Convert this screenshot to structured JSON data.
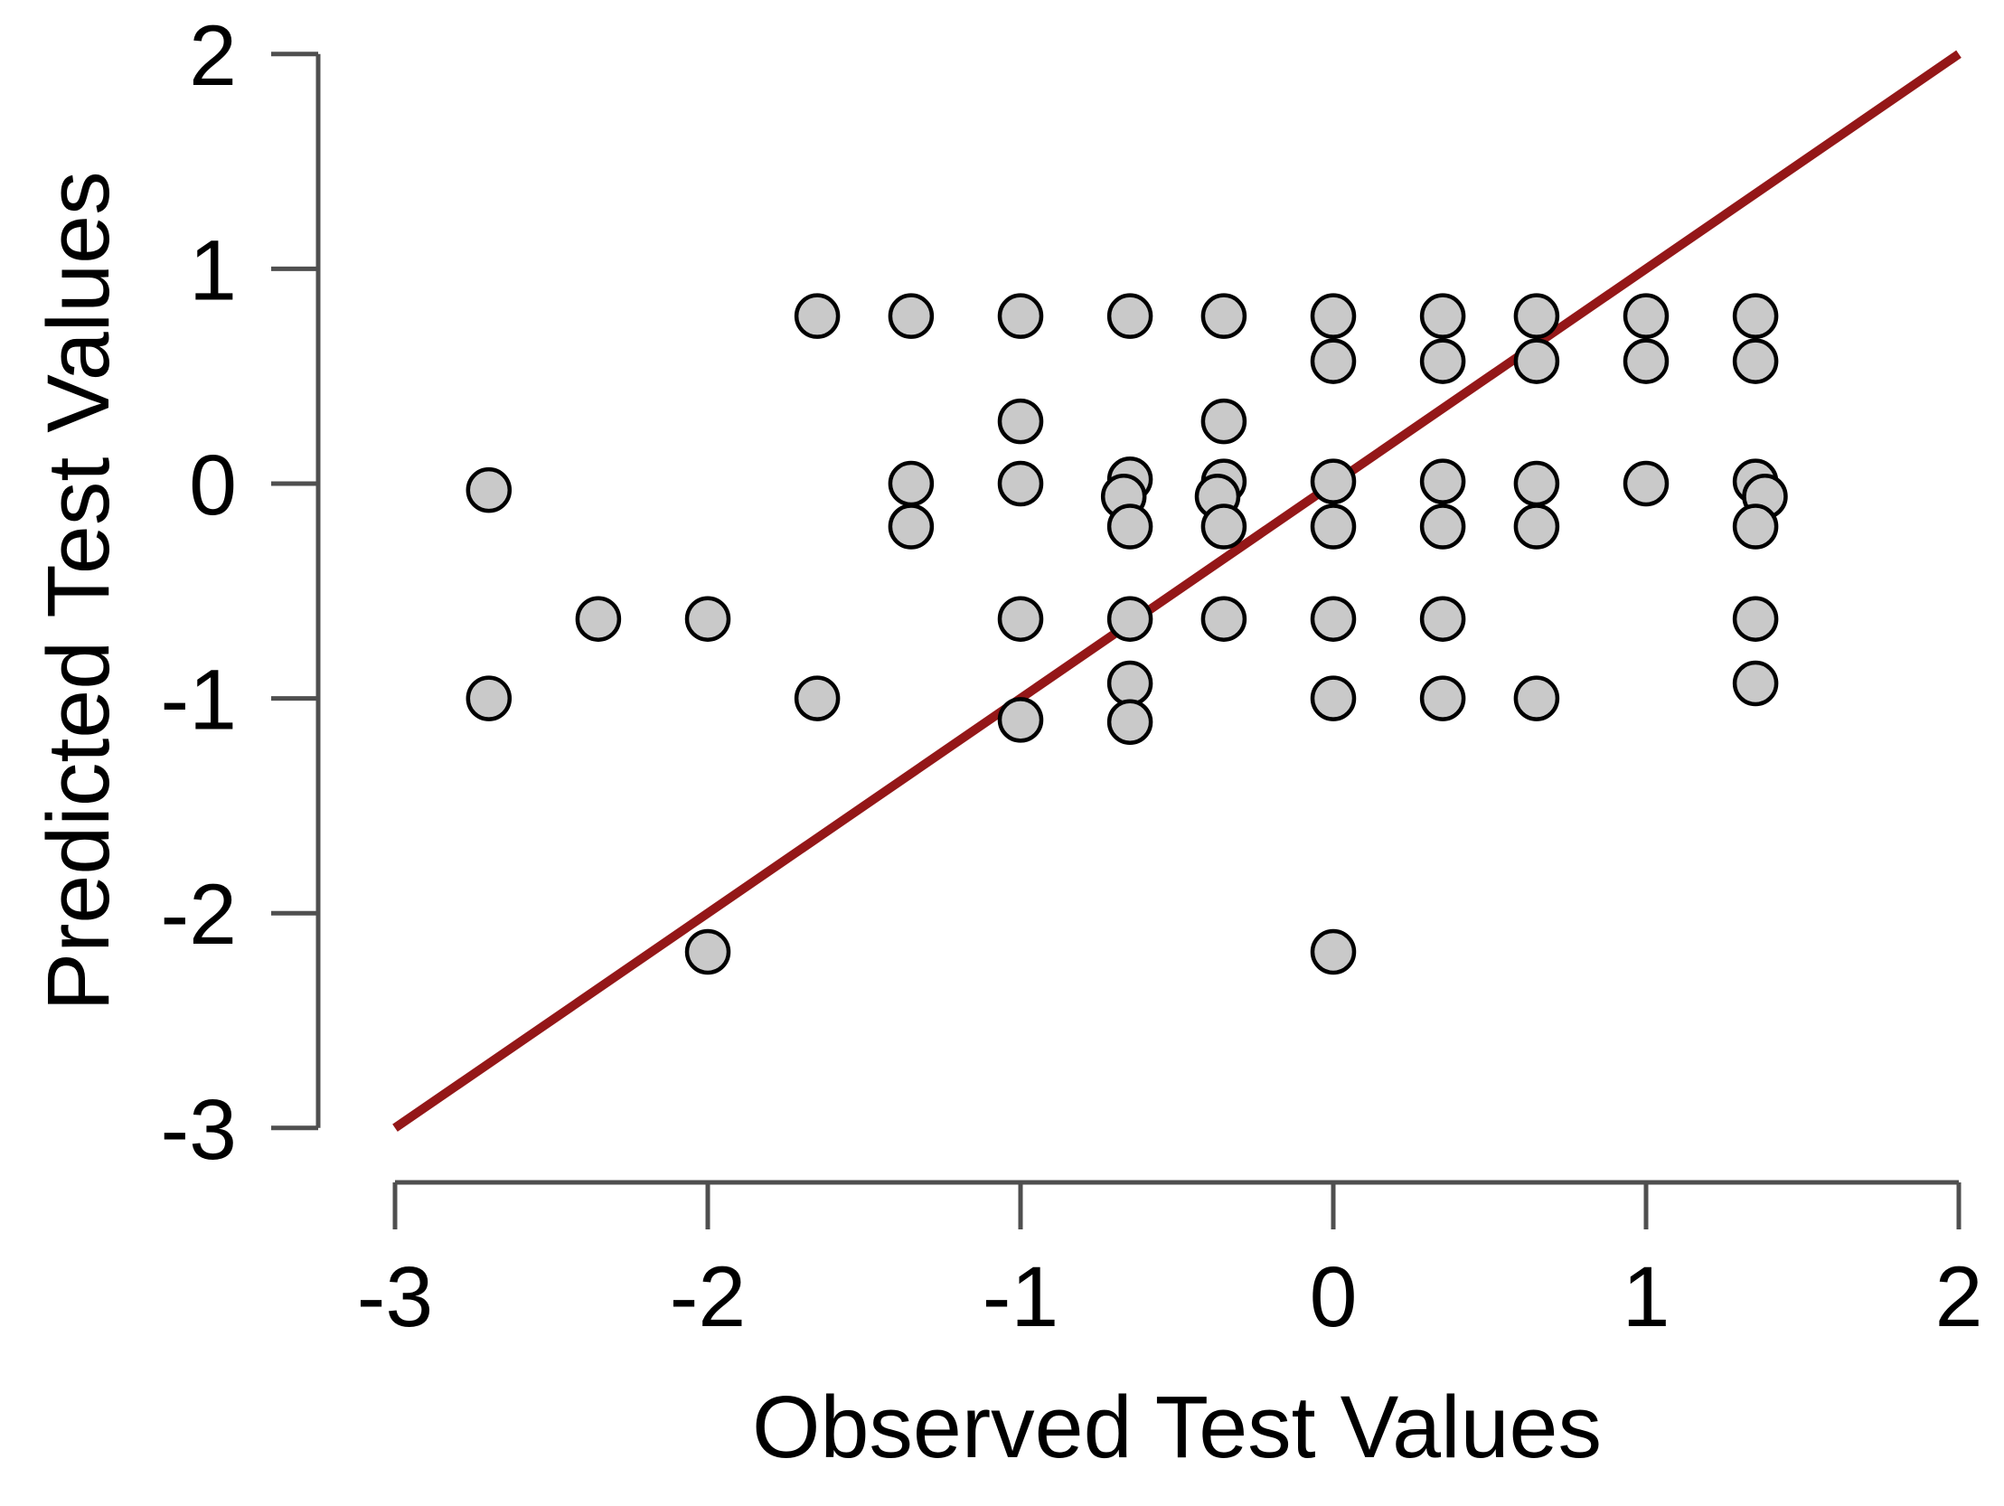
{
  "figure": {
    "background": "#ffffff"
  },
  "chart_data": {
    "type": "scatter",
    "title": "",
    "xlabel": "Observed Test Values",
    "ylabel": "Predicted Test Values",
    "xlim": [
      -3,
      2
    ],
    "ylim": [
      -3,
      2
    ],
    "x_ticks": [
      "-3",
      "-2",
      "-1",
      "0",
      "1",
      "2"
    ],
    "y_ticks": [
      "2",
      "1",
      "0",
      "-1",
      "-2",
      "-3"
    ],
    "grid": false,
    "legend": "none",
    "axis_color": "#4f4f4f",
    "label_color": "#000000",
    "marker": {
      "shape": "circle",
      "fill": "#c9c9c9",
      "stroke": "#000000"
    },
    "reference_line": {
      "kind": "identity",
      "from": [
        -3,
        -3
      ],
      "to": [
        2,
        2
      ],
      "color": "#941718"
    },
    "points": [
      [
        -2.7,
        -0.03
      ],
      [
        -2.7,
        -1.0
      ],
      [
        -2.35,
        -0.63
      ],
      [
        -2.0,
        -0.63
      ],
      [
        -2.0,
        -2.18
      ],
      [
        -1.65,
        0.78
      ],
      [
        -1.65,
        -1.0
      ],
      [
        -1.35,
        0.78
      ],
      [
        -1.35,
        0.0
      ],
      [
        -1.35,
        -0.2
      ],
      [
        -1.0,
        0.78
      ],
      [
        -1.0,
        0.29
      ],
      [
        -1.0,
        0.0
      ],
      [
        -1.0,
        -0.63
      ],
      [
        -1.0,
        -1.1
      ],
      [
        -0.65,
        0.78
      ],
      [
        -0.65,
        0.02
      ],
      [
        -0.67,
        -0.06
      ],
      [
        -0.65,
        -0.2
      ],
      [
        -0.65,
        -0.63
      ],
      [
        -0.65,
        -0.93
      ],
      [
        -0.65,
        -1.11
      ],
      [
        -0.35,
        0.78
      ],
      [
        -0.35,
        0.29
      ],
      [
        -0.35,
        0.01
      ],
      [
        -0.37,
        -0.06
      ],
      [
        -0.35,
        -0.2
      ],
      [
        -0.35,
        -0.63
      ],
      [
        0.0,
        0.78
      ],
      [
        0.0,
        0.57
      ],
      [
        0.0,
        0.01
      ],
      [
        0.0,
        -0.2
      ],
      [
        0.0,
        -0.63
      ],
      [
        0.0,
        -1.0
      ],
      [
        0.0,
        -2.18
      ],
      [
        0.35,
        0.78
      ],
      [
        0.35,
        0.57
      ],
      [
        0.35,
        0.01
      ],
      [
        0.35,
        -0.2
      ],
      [
        0.35,
        -0.63
      ],
      [
        0.35,
        -1.0
      ],
      [
        0.65,
        0.78
      ],
      [
        0.65,
        0.57
      ],
      [
        0.65,
        0.0
      ],
      [
        0.65,
        -0.2
      ],
      [
        0.65,
        -1.0
      ],
      [
        1.0,
        0.78
      ],
      [
        1.0,
        0.57
      ],
      [
        1.0,
        0.0
      ],
      [
        1.35,
        0.78
      ],
      [
        1.35,
        0.57
      ],
      [
        1.35,
        0.01
      ],
      [
        1.38,
        -0.06
      ],
      [
        1.35,
        -0.2
      ],
      [
        1.35,
        -0.63
      ],
      [
        1.35,
        -0.93
      ]
    ]
  }
}
